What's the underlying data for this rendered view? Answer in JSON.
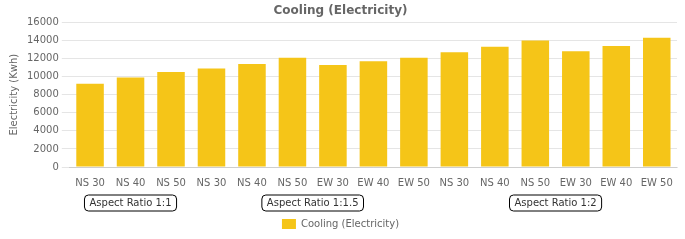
{
  "chart_data": {
    "type": "bar",
    "title": "Cooling (Electricity)",
    "y_label": "Electricity (Kwh)",
    "categories": [
      "NS 30",
      "NS 40",
      "NS 50",
      "NS 30",
      "NS 40",
      "NS 50",
      "EW 30",
      "EW 40",
      "EW 50",
      "NS 30",
      "NS 40",
      "NS 50",
      "EW 30",
      "EW 40",
      "EW 50"
    ],
    "series": [
      {
        "name": "Cooling (Electricity)",
        "color": "#F5C518",
        "values": [
          9200,
          9900,
          10500,
          10900,
          11400,
          12100,
          11300,
          11700,
          12100,
          12700,
          13300,
          14000,
          12800,
          13400,
          14300
        ]
      }
    ],
    "ylim": [
      0,
      16000
    ],
    "yticks": [
      0,
      2000,
      4000,
      6000,
      8000,
      10000,
      12000,
      14000,
      16000
    ],
    "grid": true,
    "legend": "bottom",
    "annotations": [
      {
        "text": "Aspect Ratio 1:1",
        "span": [
          0,
          2
        ]
      },
      {
        "text": "Aspect Ratio 1:1.5",
        "span": [
          3,
          8
        ]
      },
      {
        "text": "Aspect Ratio 1:2",
        "span": [
          9,
          14
        ]
      }
    ]
  }
}
